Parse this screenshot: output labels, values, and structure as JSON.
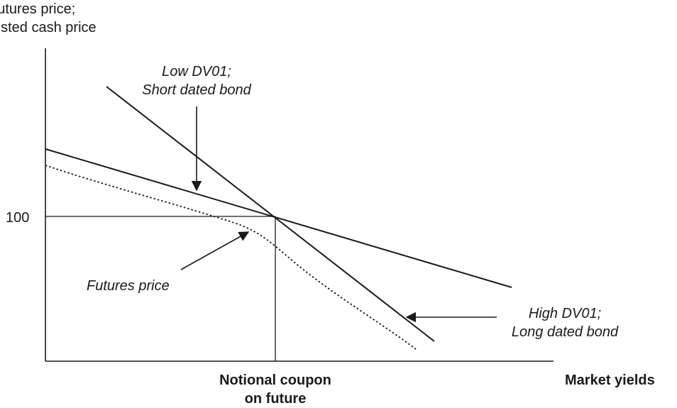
{
  "y_axis_title": {
    "line1": "Futures price;",
    "line2": "usted cash price"
  },
  "y_tick": "100",
  "x_axis_title": "Market yields",
  "x_marker": {
    "line1": "Notional coupon",
    "line2": "on future"
  },
  "annotations": {
    "low_dv01": {
      "line1": "Low DV01;",
      "line2": "Short dated bond"
    },
    "high_dv01": {
      "line1": "High DV01;",
      "line2": "Long dated bond"
    },
    "futures_price": "Futures price"
  },
  "colors": {
    "ink": "#1a1a1a",
    "background": "#ffffff"
  }
}
